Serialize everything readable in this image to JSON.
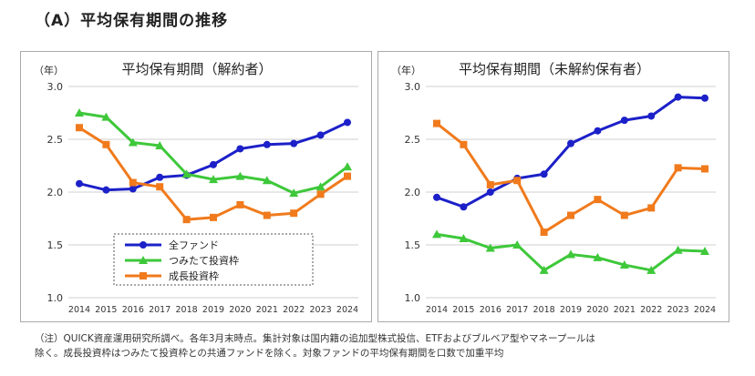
{
  "title": "（A）平均保有期間の推移",
  "note_lines": [
    "（注）QUICK資産運用研究所調べ。各年3月末時点。集計対象は国内籍の追加型株式投信、ETFおよびブルベア型やマネープールは",
    "除く。成長投資枠はつみたて投資枠との共通ファンドを除く。対象ファンドの平均保有期間を口数で加重平均"
  ],
  "chart_data": [
    {
      "type": "line",
      "title": "平均保有期間（解約者）",
      "ylabel": "（年）",
      "x": [
        "2014",
        "2015",
        "2016",
        "2017",
        "2018",
        "2019",
        "2020",
        "2021",
        "2022",
        "2023",
        "2024"
      ],
      "ylim": [
        1.0,
        3.0
      ],
      "yticks": [
        "1.0",
        "1.5",
        "2.0",
        "2.5",
        "3.0"
      ],
      "grid": true,
      "legend_position": "bottom-left",
      "series": [
        {
          "name": "全ファンド",
          "color": "#1c20c8",
          "marker": "circle",
          "values": [
            2.08,
            2.02,
            2.03,
            2.14,
            2.16,
            2.26,
            2.41,
            2.45,
            2.46,
            2.54,
            2.66
          ]
        },
        {
          "name": "つみたて投資枠",
          "color": "#3ec83a",
          "marker": "triangle",
          "values": [
            2.75,
            2.71,
            2.47,
            2.44,
            2.17,
            2.12,
            2.15,
            2.11,
            1.99,
            2.05,
            2.24
          ]
        },
        {
          "name": "成長投資枠",
          "color": "#f07a1c",
          "marker": "square",
          "values": [
            2.61,
            2.45,
            2.09,
            2.05,
            1.74,
            1.76,
            1.88,
            1.78,
            1.8,
            1.98,
            2.15
          ]
        }
      ]
    },
    {
      "type": "line",
      "title": "平均保有期間（未解約保有者）",
      "ylabel": "（年）",
      "x": [
        "2014",
        "2015",
        "2016",
        "2017",
        "2018",
        "2019",
        "2020",
        "2021",
        "2022",
        "2023",
        "2024"
      ],
      "ylim": [
        1.0,
        3.0
      ],
      "yticks": [
        "1.0",
        "1.5",
        "2.0",
        "2.5",
        "3.0"
      ],
      "grid": true,
      "series": [
        {
          "name": "全ファンド",
          "color": "#1c20c8",
          "marker": "circle",
          "values": [
            1.95,
            1.86,
            2.0,
            2.13,
            2.17,
            2.46,
            2.58,
            2.68,
            2.72,
            2.9,
            2.89
          ]
        },
        {
          "name": "つみたて投資枠",
          "color": "#3ec83a",
          "marker": "triangle",
          "values": [
            1.6,
            1.56,
            1.47,
            1.5,
            1.26,
            1.41,
            1.38,
            1.31,
            1.26,
            1.45,
            1.44
          ]
        },
        {
          "name": "成長投資枠",
          "color": "#f07a1c",
          "marker": "square",
          "values": [
            2.65,
            2.45,
            2.07,
            2.11,
            1.62,
            1.78,
            1.93,
            1.78,
            1.85,
            2.23,
            2.22
          ]
        }
      ]
    }
  ]
}
